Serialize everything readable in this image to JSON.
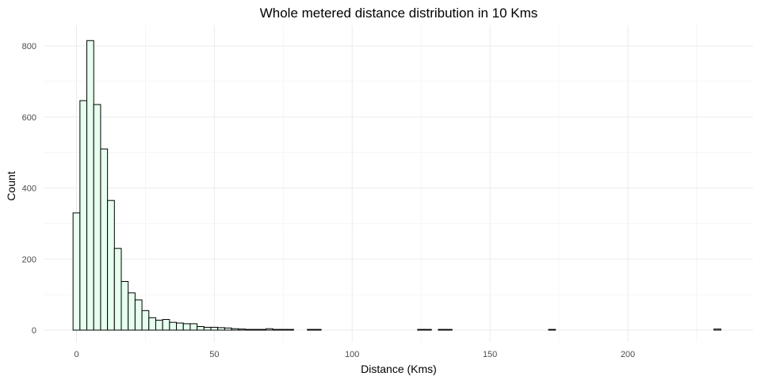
{
  "chart_data": {
    "type": "bar",
    "title": "Whole metered distance distribution in 10 Kms",
    "xlabel": "Distance (Kms)",
    "ylabel": "Count",
    "bin_width": 2.5,
    "xlim": [
      -10,
      250
    ],
    "ylim": [
      0,
      820
    ],
    "x_ticks": [
      0,
      50,
      100,
      150,
      200
    ],
    "y_ticks": [
      0,
      200,
      400,
      600,
      800
    ],
    "grid": true,
    "colors": {
      "bar_fill": "#e6ffee",
      "bar_stroke": "#000000",
      "grid": "#ebebeb"
    },
    "bins": [
      {
        "x": 0,
        "count": 330
      },
      {
        "x": 2.5,
        "count": 646
      },
      {
        "x": 5,
        "count": 815
      },
      {
        "x": 7.5,
        "count": 635
      },
      {
        "x": 10,
        "count": 510
      },
      {
        "x": 12.5,
        "count": 365
      },
      {
        "x": 15,
        "count": 230
      },
      {
        "x": 17.5,
        "count": 137
      },
      {
        "x": 20,
        "count": 105
      },
      {
        "x": 22.5,
        "count": 85
      },
      {
        "x": 25,
        "count": 55
      },
      {
        "x": 27.5,
        "count": 35
      },
      {
        "x": 30,
        "count": 28
      },
      {
        "x": 32.5,
        "count": 30
      },
      {
        "x": 35,
        "count": 22
      },
      {
        "x": 37.5,
        "count": 20
      },
      {
        "x": 40,
        "count": 18
      },
      {
        "x": 42.5,
        "count": 18
      },
      {
        "x": 45,
        "count": 10
      },
      {
        "x": 47.5,
        "count": 8
      },
      {
        "x": 50,
        "count": 8
      },
      {
        "x": 52.5,
        "count": 7
      },
      {
        "x": 55,
        "count": 6
      },
      {
        "x": 57.5,
        "count": 4
      },
      {
        "x": 60,
        "count": 3
      },
      {
        "x": 62.5,
        "count": 2
      },
      {
        "x": 65,
        "count": 2
      },
      {
        "x": 67.5,
        "count": 2
      },
      {
        "x": 70,
        "count": 4
      },
      {
        "x": 72.5,
        "count": 2
      },
      {
        "x": 75,
        "count": 2
      },
      {
        "x": 77.5,
        "count": 2
      },
      {
        "x": 85,
        "count": 2
      },
      {
        "x": 87.5,
        "count": 2
      },
      {
        "x": 125,
        "count": 2
      },
      {
        "x": 127.5,
        "count": 2
      },
      {
        "x": 132.5,
        "count": 2
      },
      {
        "x": 135,
        "count": 2
      },
      {
        "x": 172.5,
        "count": 2
      },
      {
        "x": 232.5,
        "count": 3
      }
    ]
  }
}
